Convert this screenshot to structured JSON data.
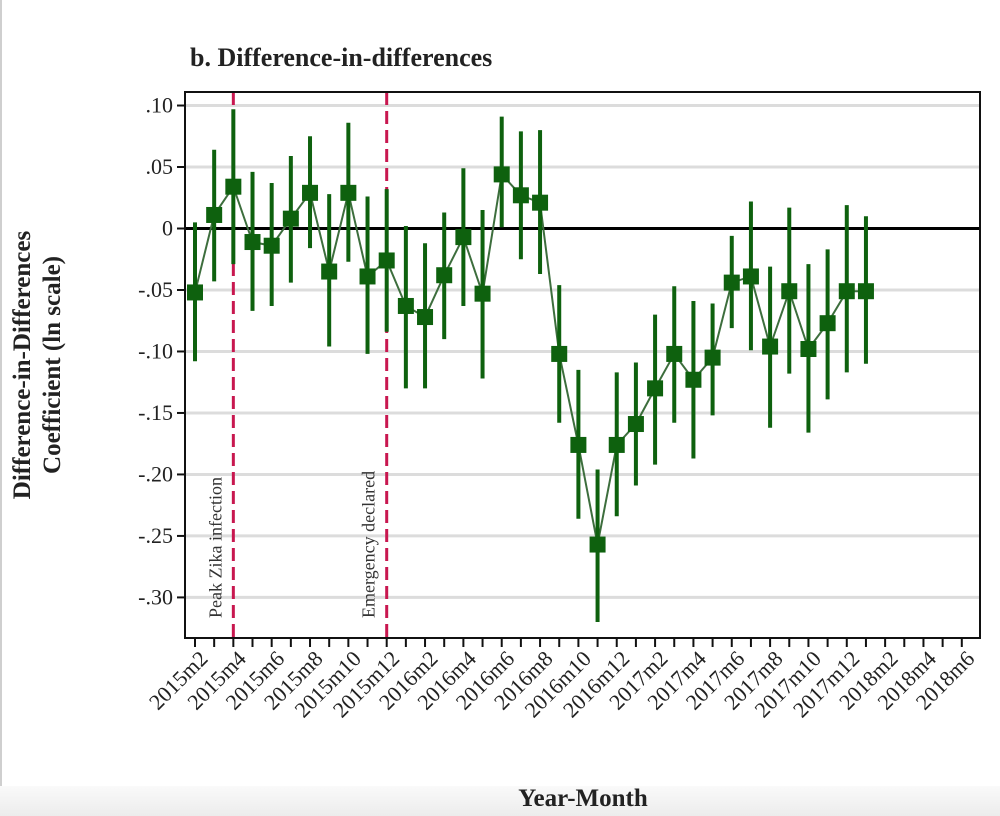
{
  "chart_data": {
    "type": "scatter",
    "title": "b. Difference-in-differences",
    "xlabel": "Year-Month",
    "ylabel_lines": [
      "Difference-in-Differences",
      "Coefficient (ln scale)"
    ],
    "ylim": [
      -0.333,
      0.111
    ],
    "y_ticks": [
      0.1,
      0.05,
      0,
      -0.05,
      -0.1,
      -0.15,
      -0.2,
      -0.25,
      -0.3
    ],
    "y_tick_labels": [
      ".10",
      ".05",
      "0",
      "-.05",
      "-.10",
      "-.15",
      "-.20",
      "-.25",
      "-.30"
    ],
    "x_tick_labels": [
      "2015m2",
      "2015m4",
      "2015m6",
      "2015m8",
      "2015m10",
      "2015m12",
      "2016m2",
      "2016m4",
      "2016m6",
      "2016m8",
      "2016m10",
      "2016m12",
      "2017m2",
      "2017m4",
      "2017m6",
      "2017m8",
      "2017m10",
      "2017m12",
      "2018m2",
      "2018m4",
      "2018m6"
    ],
    "grid": true,
    "reference_line_y": 0,
    "series_color": "#0e610e",
    "marker": "square",
    "x": [
      "2015m2",
      "2015m3",
      "2015m4",
      "2015m5",
      "2015m6",
      "2015m7",
      "2015m8",
      "2015m9",
      "2015m10",
      "2015m11",
      "2015m12",
      "2016m1",
      "2016m2",
      "2016m3",
      "2016m4",
      "2016m5",
      "2016m6",
      "2016m7",
      "2016m8",
      "2016m9",
      "2016m10",
      "2016m11",
      "2016m12",
      "2017m1",
      "2017m2",
      "2017m3",
      "2017m4",
      "2017m5",
      "2017m6",
      "2017m7",
      "2017m8",
      "2017m9",
      "2017m10",
      "2017m11",
      "2017m12",
      "2018m1"
    ],
    "y": [
      -0.052,
      0.011,
      0.034,
      -0.011,
      -0.014,
      0.008,
      0.029,
      -0.035,
      0.029,
      -0.039,
      -0.026,
      -0.063,
      -0.072,
      -0.038,
      -0.007,
      -0.053,
      0.044,
      0.027,
      0.021,
      -0.102,
      -0.176,
      -0.257,
      -0.176,
      -0.159,
      -0.13,
      -0.102,
      -0.123,
      -0.105,
      -0.044,
      -0.039,
      -0.096,
      -0.051,
      -0.098,
      -0.077,
      -0.051,
      -0.051
    ],
    "ci_upper": [
      0.005,
      0.064,
      0.097,
      0.046,
      0.037,
      0.059,
      0.075,
      0.028,
      0.086,
      0.026,
      0.032,
      0.002,
      -0.012,
      0.013,
      0.049,
      0.015,
      0.091,
      0.079,
      0.08,
      -0.046,
      -0.115,
      -0.196,
      -0.117,
      -0.109,
      -0.07,
      -0.047,
      -0.059,
      -0.061,
      -0.006,
      0.022,
      -0.031,
      0.017,
      -0.029,
      -0.017,
      0.019,
      0.01
    ],
    "ci_lower": [
      -0.108,
      -0.043,
      -0.029,
      -0.067,
      -0.063,
      -0.044,
      -0.016,
      -0.096,
      -0.027,
      -0.102,
      -0.084,
      -0.13,
      -0.13,
      -0.09,
      -0.063,
      -0.122,
      0.001,
      -0.025,
      -0.037,
      -0.158,
      -0.236,
      -0.32,
      -0.234,
      -0.209,
      -0.192,
      -0.158,
      -0.187,
      -0.152,
      -0.081,
      -0.099,
      -0.162,
      -0.118,
      -0.166,
      -0.139,
      -0.117,
      -0.11
    ],
    "vlines": [
      {
        "x": "2015m4",
        "label": "Peak Zika infection",
        "color": "#c8174f"
      },
      {
        "x": "2015m12",
        "label": "Emergency declared",
        "color": "#c8174f"
      }
    ]
  }
}
